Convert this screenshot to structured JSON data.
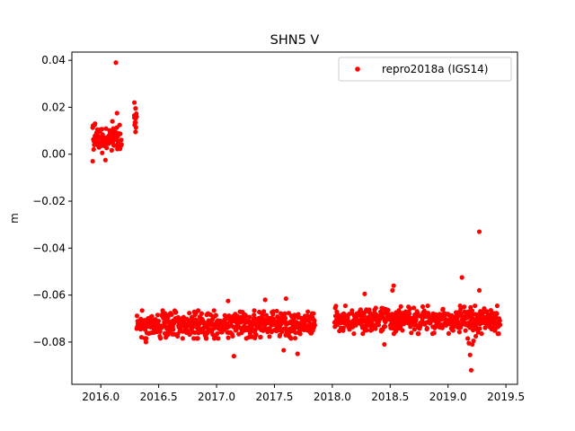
{
  "chart_data": {
    "type": "scatter",
    "title": "SHN5 V",
    "xlabel": "",
    "ylabel": "m",
    "xlim": [
      2015.75,
      2019.6
    ],
    "ylim": [
      -0.098,
      0.0435
    ],
    "xticks": [
      2016.0,
      2016.5,
      2017.0,
      2017.5,
      2018.0,
      2018.5,
      2019.0,
      2019.5
    ],
    "xtick_labels": [
      "2016.0",
      "2016.5",
      "2017.0",
      "2017.5",
      "2018.0",
      "2018.5",
      "2019.0",
      "2019.5"
    ],
    "yticks": [
      0.04,
      0.02,
      0.0,
      -0.02,
      -0.04,
      -0.06,
      -0.08
    ],
    "ytick_labels": [
      "0.04",
      "0.02",
      "0.00",
      "−0.02",
      "−0.04",
      "−0.06",
      "−0.08"
    ],
    "grid": false,
    "legend_position": "top-right",
    "series": [
      {
        "name": "repro2018a (IGS14)",
        "color": "#ff0000",
        "marker": "circle",
        "segments": [
          {
            "x_start": 2015.93,
            "x_end": 2016.18,
            "center": 0.0065,
            "spread": 0.0045
          },
          {
            "x_start": 2016.29,
            "x_end": 2016.31,
            "center": 0.016,
            "spread": 0.004
          },
          {
            "x_start": 2016.31,
            "x_end": 2017.85,
            "center": -0.0725,
            "spread": 0.0045
          },
          {
            "x_start": 2018.02,
            "x_end": 2019.45,
            "center": -0.0705,
            "spread": 0.0045
          }
        ],
        "points": [
          {
            "x": 2016.13,
            "y": 0.039
          },
          {
            "x": 2016.29,
            "y": 0.022
          },
          {
            "x": 2016.3,
            "y": 0.0195
          },
          {
            "x": 2016.29,
            "y": 0.0165
          },
          {
            "x": 2016.3,
            "y": 0.0135
          },
          {
            "x": 2016.3,
            "y": 0.0095
          },
          {
            "x": 2015.93,
            "y": -0.003
          },
          {
            "x": 2015.95,
            "y": 0.013
          },
          {
            "x": 2016.04,
            "y": -0.0025
          },
          {
            "x": 2016.14,
            "y": 0.0175
          },
          {
            "x": 2016.1,
            "y": 0.014
          },
          {
            "x": 2017.1,
            "y": -0.0625
          },
          {
            "x": 2017.15,
            "y": -0.086
          },
          {
            "x": 2017.58,
            "y": -0.0835
          },
          {
            "x": 2017.7,
            "y": -0.085
          },
          {
            "x": 2017.42,
            "y": -0.062
          },
          {
            "x": 2017.6,
            "y": -0.0615
          },
          {
            "x": 2016.39,
            "y": -0.08
          },
          {
            "x": 2018.28,
            "y": -0.0595
          },
          {
            "x": 2018.53,
            "y": -0.056
          },
          {
            "x": 2018.52,
            "y": -0.058
          },
          {
            "x": 2018.45,
            "y": -0.081
          },
          {
            "x": 2019.12,
            "y": -0.0525
          },
          {
            "x": 2019.14,
            "y": -0.065
          },
          {
            "x": 2019.27,
            "y": -0.033
          },
          {
            "x": 2019.27,
            "y": -0.058
          },
          {
            "x": 2019.2,
            "y": -0.092
          },
          {
            "x": 2019.19,
            "y": -0.0855
          },
          {
            "x": 2019.18,
            "y": -0.0805
          },
          {
            "x": 2019.21,
            "y": -0.081
          },
          {
            "x": 2019.22,
            "y": -0.0795
          },
          {
            "x": 2019.17,
            "y": -0.0785
          },
          {
            "x": 2019.24,
            "y": -0.0775
          }
        ]
      }
    ]
  }
}
